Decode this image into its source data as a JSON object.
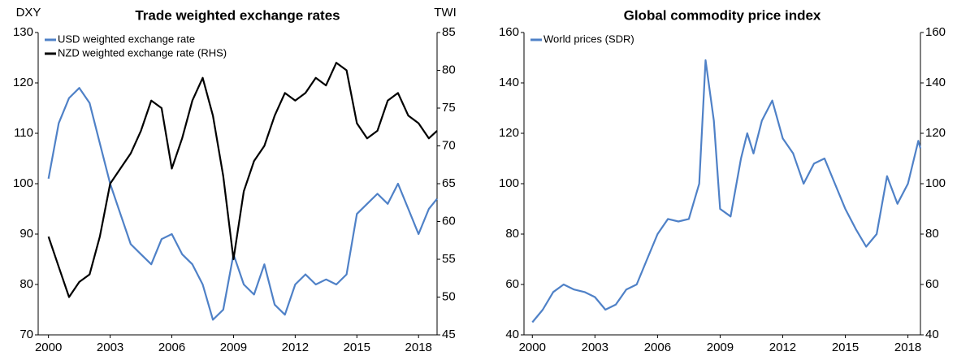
{
  "chart_data": [
    {
      "type": "line",
      "title": "Trade weighted exchange rates",
      "y_label": "DXY",
      "y2_label": "TWI",
      "x": [
        2000,
        2000.5,
        2001,
        2001.5,
        2002,
        2002.5,
        2003,
        2003.5,
        2004,
        2004.5,
        2005,
        2005.5,
        2006,
        2006.5,
        2007,
        2007.5,
        2008,
        2008.5,
        2009,
        2009.5,
        2010,
        2010.5,
        2011,
        2011.5,
        2012,
        2012.5,
        2013,
        2013.5,
        2014,
        2014.5,
        2015,
        2015.5,
        2016,
        2016.5,
        2017,
        2017.5,
        2018,
        2018.5,
        2018.9
      ],
      "series": [
        {
          "name": "USD weighted exchange rate",
          "color": "#4f81c7",
          "axis": "y",
          "values": [
            101,
            112,
            117,
            119,
            116,
            108,
            100,
            94,
            88,
            86,
            84,
            89,
            90,
            86,
            84,
            80,
            73,
            75,
            86,
            80,
            78,
            84,
            76,
            74,
            80,
            82,
            80,
            81,
            80,
            82,
            94,
            96,
            98,
            96,
            100,
            95,
            90,
            95,
            97
          ]
        },
        {
          "name": "NZD weighted exchange rate (RHS)",
          "color": "#000000",
          "axis": "y2",
          "values": [
            58,
            54,
            50,
            52,
            53,
            58,
            65,
            67,
            69,
            72,
            76,
            75,
            67,
            71,
            76,
            79,
            74,
            66,
            55,
            64,
            68,
            70,
            74,
            77,
            76,
            77,
            79,
            78,
            81,
            80,
            73,
            71,
            72,
            76,
            77,
            74,
            73,
            71,
            72
          ]
        }
      ],
      "xlim": [
        1999.5,
        2018.9
      ],
      "xticks": [
        2000,
        2003,
        2006,
        2009,
        2012,
        2015,
        2018
      ],
      "ylim": [
        70,
        130
      ],
      "yticks": [
        70,
        80,
        90,
        100,
        110,
        120,
        130
      ],
      "y2lim": [
        45,
        85
      ],
      "y2ticks": [
        45,
        50,
        55,
        60,
        65,
        70,
        75,
        80,
        85
      ],
      "grid": false,
      "legend": "top-left"
    },
    {
      "type": "line",
      "title": "Global commodity price index",
      "x": [
        2000,
        2000.5,
        2001,
        2001.5,
        2002,
        2002.5,
        2003,
        2003.5,
        2004,
        2004.5,
        2005,
        2005.5,
        2006,
        2006.5,
        2007,
        2007.5,
        2008,
        2008.3,
        2008.7,
        2009,
        2009.5,
        2010,
        2010.3,
        2010.6,
        2011,
        2011.5,
        2012,
        2012.5,
        2013,
        2013.5,
        2014,
        2014.5,
        2015,
        2015.5,
        2016,
        2016.5,
        2017,
        2017.5,
        2018,
        2018.5,
        2018.6
      ],
      "series": [
        {
          "name": "World prices (SDR)",
          "color": "#4f81c7",
          "axis": "y",
          "values": [
            45,
            50,
            57,
            60,
            58,
            57,
            55,
            50,
            52,
            58,
            60,
            70,
            80,
            86,
            85,
            86,
            100,
            149,
            125,
            90,
            87,
            110,
            120,
            112,
            125,
            133,
            118,
            112,
            100,
            108,
            110,
            100,
            90,
            82,
            75,
            80,
            103,
            92,
            100,
            117,
            114
          ]
        }
      ],
      "xlim": [
        1999.6,
        2018.6
      ],
      "xticks": [
        2000,
        2003,
        2006,
        2009,
        2012,
        2015,
        2018
      ],
      "ylim": [
        40,
        160
      ],
      "yticks": [
        40,
        60,
        80,
        100,
        120,
        140,
        160
      ],
      "y2lim": [
        40,
        160
      ],
      "y2ticks": [
        40,
        60,
        80,
        100,
        120,
        140,
        160
      ],
      "grid": false,
      "legend": "top-left"
    }
  ]
}
